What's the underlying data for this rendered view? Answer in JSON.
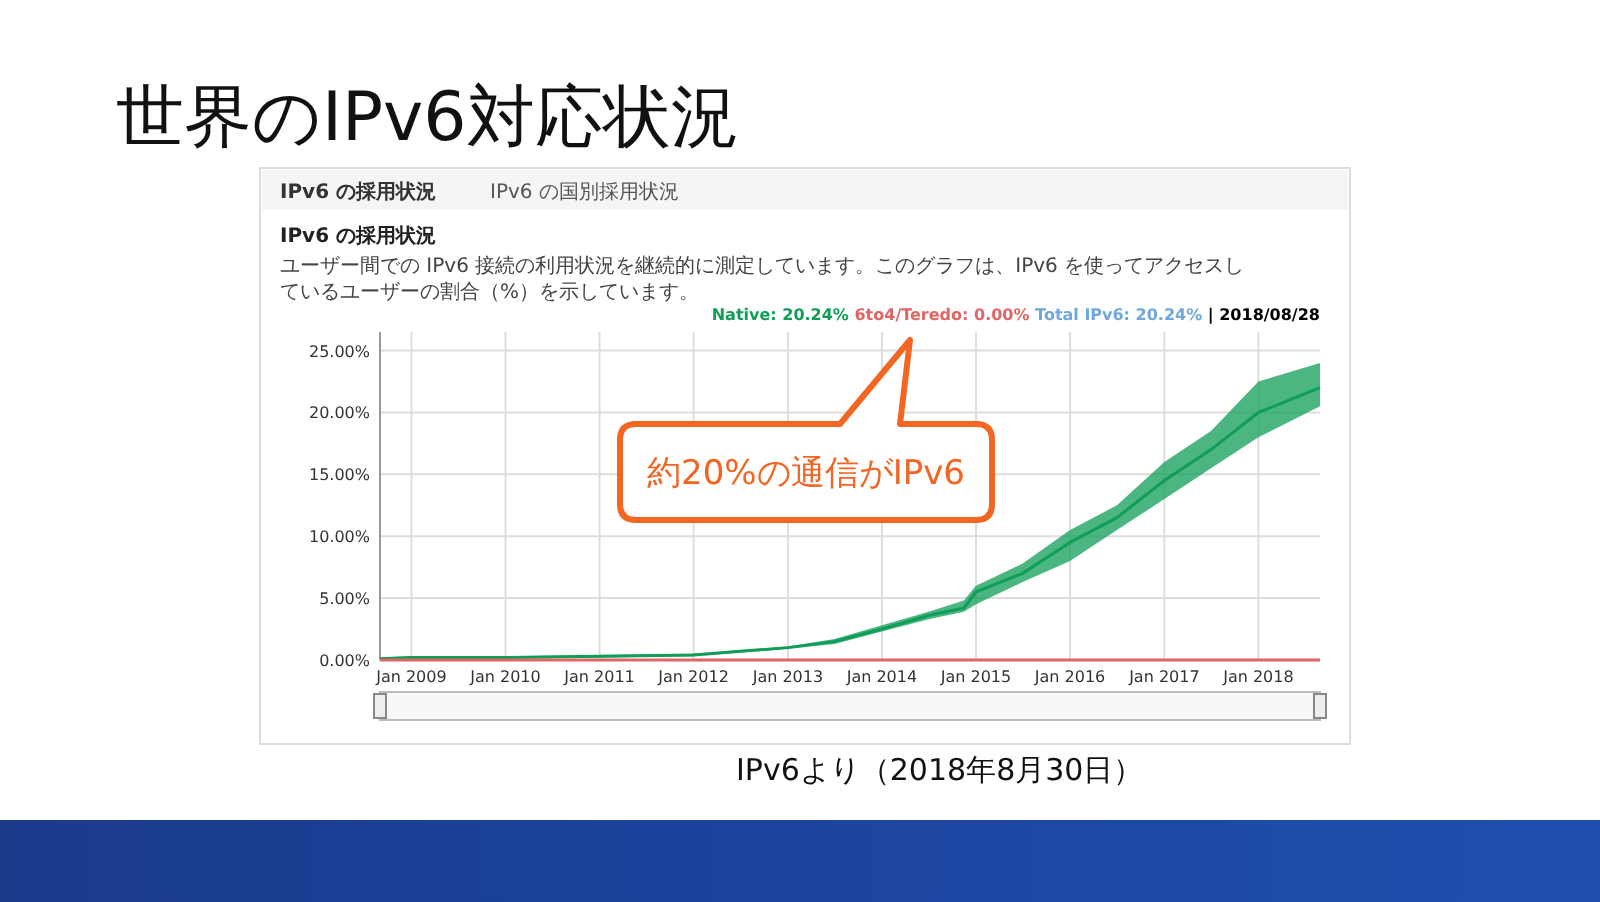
{
  "chart_data": {
    "type": "line",
    "title": "世界のIPv6対応状況",
    "subtitle": "IPv6 の採用状況",
    "annotations": [
      "IPv6 の採用状況",
      "IPv6 の国別採用状況",
      "ユーザー間での IPv6 接続の利用状況を継続的に測定しています。このグラフは、IPv6 を使ってアクセスしているユーザーの割合（%）を示しています。",
      "| 2018/08/28",
      "約20%の通信がIPv6",
      "IPv6より（2018年8月30日）"
    ],
    "x": [
      "2008-09-01",
      "2009-01-01",
      "2010-01-01",
      "2011-01-01",
      "2012-01-01",
      "2012-07-01",
      "2013-01-01",
      "2013-07-01",
      "2014-01-01",
      "2014-07-01",
      "2014-11-15",
      "2015-01-01",
      "2015-07-01",
      "2016-01-01",
      "2016-07-01",
      "2017-01-01",
      "2017-07-01",
      "2018-01-01",
      "2018-08-28"
    ],
    "series": [
      {
        "name": "Total IPv6: 20.24%",
        "color": "#6fa8dc",
        "values": [
          null,
          null,
          null,
          null,
          null,
          null,
          null,
          null,
          null,
          null,
          null,
          null,
          null,
          null,
          null,
          null,
          null,
          null,
          null
        ]
      },
      {
        "name": "Native: 20.24%",
        "color": "#0f9d58",
        "values": [
          0.1,
          0.2,
          0.2,
          0.3,
          0.4,
          0.7,
          1.0,
          1.5,
          2.5,
          3.6,
          4.2,
          5.5,
          7,
          9.5,
          11.5,
          14.5,
          17,
          20,
          22
        ],
        "lower": [
          0.0,
          0.1,
          0.1,
          0.2,
          0.3,
          0.6,
          0.9,
          1.3,
          2.3,
          3.3,
          3.9,
          4.5,
          6.3,
          8,
          10.5,
          13,
          15.5,
          18,
          20.5
        ],
        "upper": [
          0.2,
          0.3,
          0.3,
          0.4,
          0.5,
          0.8,
          1.1,
          1.7,
          2.8,
          3.9,
          4.8,
          6,
          7.8,
          10.5,
          12.5,
          16,
          18.5,
          22.5,
          24
        ]
      },
      {
        "name": "6to4/Teredo: 0.00%",
        "color": "#e06666",
        "values": [
          0,
          0,
          0,
          0,
          0,
          0,
          0,
          0,
          0,
          0,
          0,
          0,
          0,
          0,
          0,
          0,
          0,
          0,
          0
        ]
      }
    ],
    "xlim": [
      "2008-09-01",
      "2018-08-28"
    ],
    "xticks": [
      {
        "value": "2009-01-01",
        "label": "Jan 2009"
      },
      {
        "value": "2010-01-01",
        "label": "Jan 2010"
      },
      {
        "value": "2011-01-01",
        "label": "Jan 2011"
      },
      {
        "value": "2012-01-01",
        "label": "Jan 2012"
      },
      {
        "value": "2013-01-01",
        "label": "Jan 2013"
      },
      {
        "value": "2014-01-01",
        "label": "Jan 2014"
      },
      {
        "value": "2015-01-01",
        "label": "Jan 2015"
      },
      {
        "value": "2016-01-01",
        "label": "Jan 2016"
      },
      {
        "value": "2017-01-01",
        "label": "Jan 2017"
      },
      {
        "value": "2018-01-01",
        "label": "Jan 2018"
      }
    ],
    "ylim": [
      0,
      26.5
    ],
    "yticks": [
      {
        "value": 0,
        "label": "0.00%"
      },
      {
        "value": 5,
        "label": "5.00%"
      },
      {
        "value": 10,
        "label": "10.00%"
      },
      {
        "value": 15,
        "label": "15.00%"
      },
      {
        "value": 20,
        "label": "20.00%"
      },
      {
        "value": 25,
        "label": "25.00%"
      }
    ],
    "grid": true,
    "legend": "top right"
  }
}
